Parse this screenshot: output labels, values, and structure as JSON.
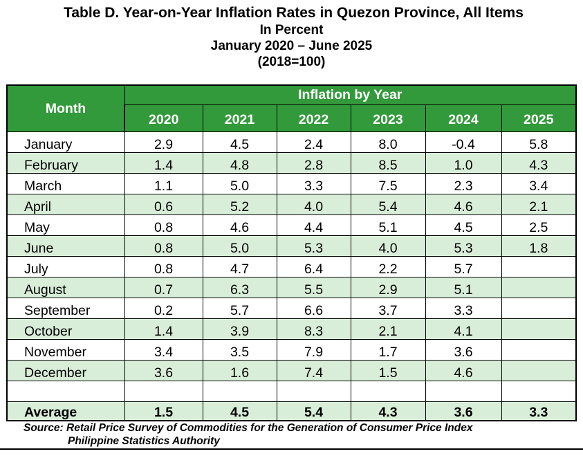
{
  "title": "Table D. Year-on-Year Inflation Rates in Quezon Province, All Items",
  "subtitle_unit": "In Percent",
  "subtitle_period": "January 2020 – June 2025",
  "subtitle_base": "(2018=100)",
  "header": {
    "month_label": "Month",
    "group_label": "Inflation by Year",
    "years": [
      "2020",
      "2021",
      "2022",
      "2023",
      "2024",
      "2025"
    ]
  },
  "rows": [
    {
      "month": "January",
      "values": [
        "2.9",
        "4.5",
        "2.4",
        "8.0",
        "-0.4",
        "5.8"
      ]
    },
    {
      "month": "February",
      "values": [
        "1.4",
        "4.8",
        "2.8",
        "8.5",
        "1.0",
        "4.3"
      ]
    },
    {
      "month": "March",
      "values": [
        "1.1",
        "5.0",
        "3.3",
        "7.5",
        "2.3",
        "3.4"
      ]
    },
    {
      "month": "April",
      "values": [
        "0.6",
        "5.2",
        "4.0",
        "5.4",
        "4.6",
        "2.1"
      ]
    },
    {
      "month": "May",
      "values": [
        "0.8",
        "4.6",
        "4.4",
        "5.1",
        "4.5",
        "2.5"
      ]
    },
    {
      "month": "June",
      "values": [
        "0.8",
        "5.0",
        "5.3",
        "4.0",
        "5.3",
        "1.8"
      ]
    },
    {
      "month": "July",
      "values": [
        "0.8",
        "4.7",
        "6.4",
        "2.2",
        "5.7",
        ""
      ]
    },
    {
      "month": "August",
      "values": [
        "0.7",
        "6.3",
        "5.5",
        "2.9",
        "5.1",
        ""
      ]
    },
    {
      "month": "September",
      "values": [
        "0.2",
        "5.7",
        "6.6",
        "3.7",
        "3.3",
        ""
      ]
    },
    {
      "month": "October",
      "values": [
        "1.4",
        "3.9",
        "8.3",
        "2.1",
        "4.1",
        ""
      ]
    },
    {
      "month": "November",
      "values": [
        "3.4",
        "3.5",
        "7.9",
        "1.7",
        "3.6",
        ""
      ]
    },
    {
      "month": "December",
      "values": [
        "3.6",
        "1.6",
        "7.4",
        "1.5",
        "4.6",
        ""
      ]
    }
  ],
  "average": {
    "label": "Average",
    "values": [
      "1.5",
      "4.5",
      "5.4",
      "4.3",
      "3.6",
      "3.3"
    ]
  },
  "source_line1": "Source: Retail Price Survey of Commodities for the Generation of Consumer Price Index",
  "source_line2": "Philippine Statistics Authority",
  "colors": {
    "header_green": "#329a3a",
    "row_band": "#d9eed9"
  },
  "chart_data": {
    "type": "table",
    "title": "Table D. Year-on-Year Inflation Rates in Quezon Province, All Items",
    "columns": [
      "2020",
      "2021",
      "2022",
      "2023",
      "2024",
      "2025"
    ],
    "row_labels": [
      "January",
      "February",
      "March",
      "April",
      "May",
      "June",
      "July",
      "August",
      "September",
      "October",
      "November",
      "December"
    ],
    "values": [
      [
        2.9,
        4.5,
        2.4,
        8.0,
        -0.4,
        5.8
      ],
      [
        1.4,
        4.8,
        2.8,
        8.5,
        1.0,
        4.3
      ],
      [
        1.1,
        5.0,
        3.3,
        7.5,
        2.3,
        3.4
      ],
      [
        0.6,
        5.2,
        4.0,
        5.4,
        4.6,
        2.1
      ],
      [
        0.8,
        4.6,
        4.4,
        5.1,
        4.5,
        2.5
      ],
      [
        0.8,
        5.0,
        5.3,
        4.0,
        5.3,
        1.8
      ],
      [
        0.8,
        4.7,
        6.4,
        2.2,
        5.7,
        null
      ],
      [
        0.7,
        6.3,
        5.5,
        2.9,
        5.1,
        null
      ],
      [
        0.2,
        5.7,
        6.6,
        3.7,
        3.3,
        null
      ],
      [
        1.4,
        3.9,
        8.3,
        2.1,
        4.1,
        null
      ],
      [
        3.4,
        3.5,
        7.9,
        1.7,
        3.6,
        null
      ],
      [
        3.6,
        1.6,
        7.4,
        1.5,
        4.6,
        null
      ]
    ],
    "average": [
      1.5,
      4.5,
      5.4,
      4.3,
      3.6,
      3.3
    ]
  }
}
